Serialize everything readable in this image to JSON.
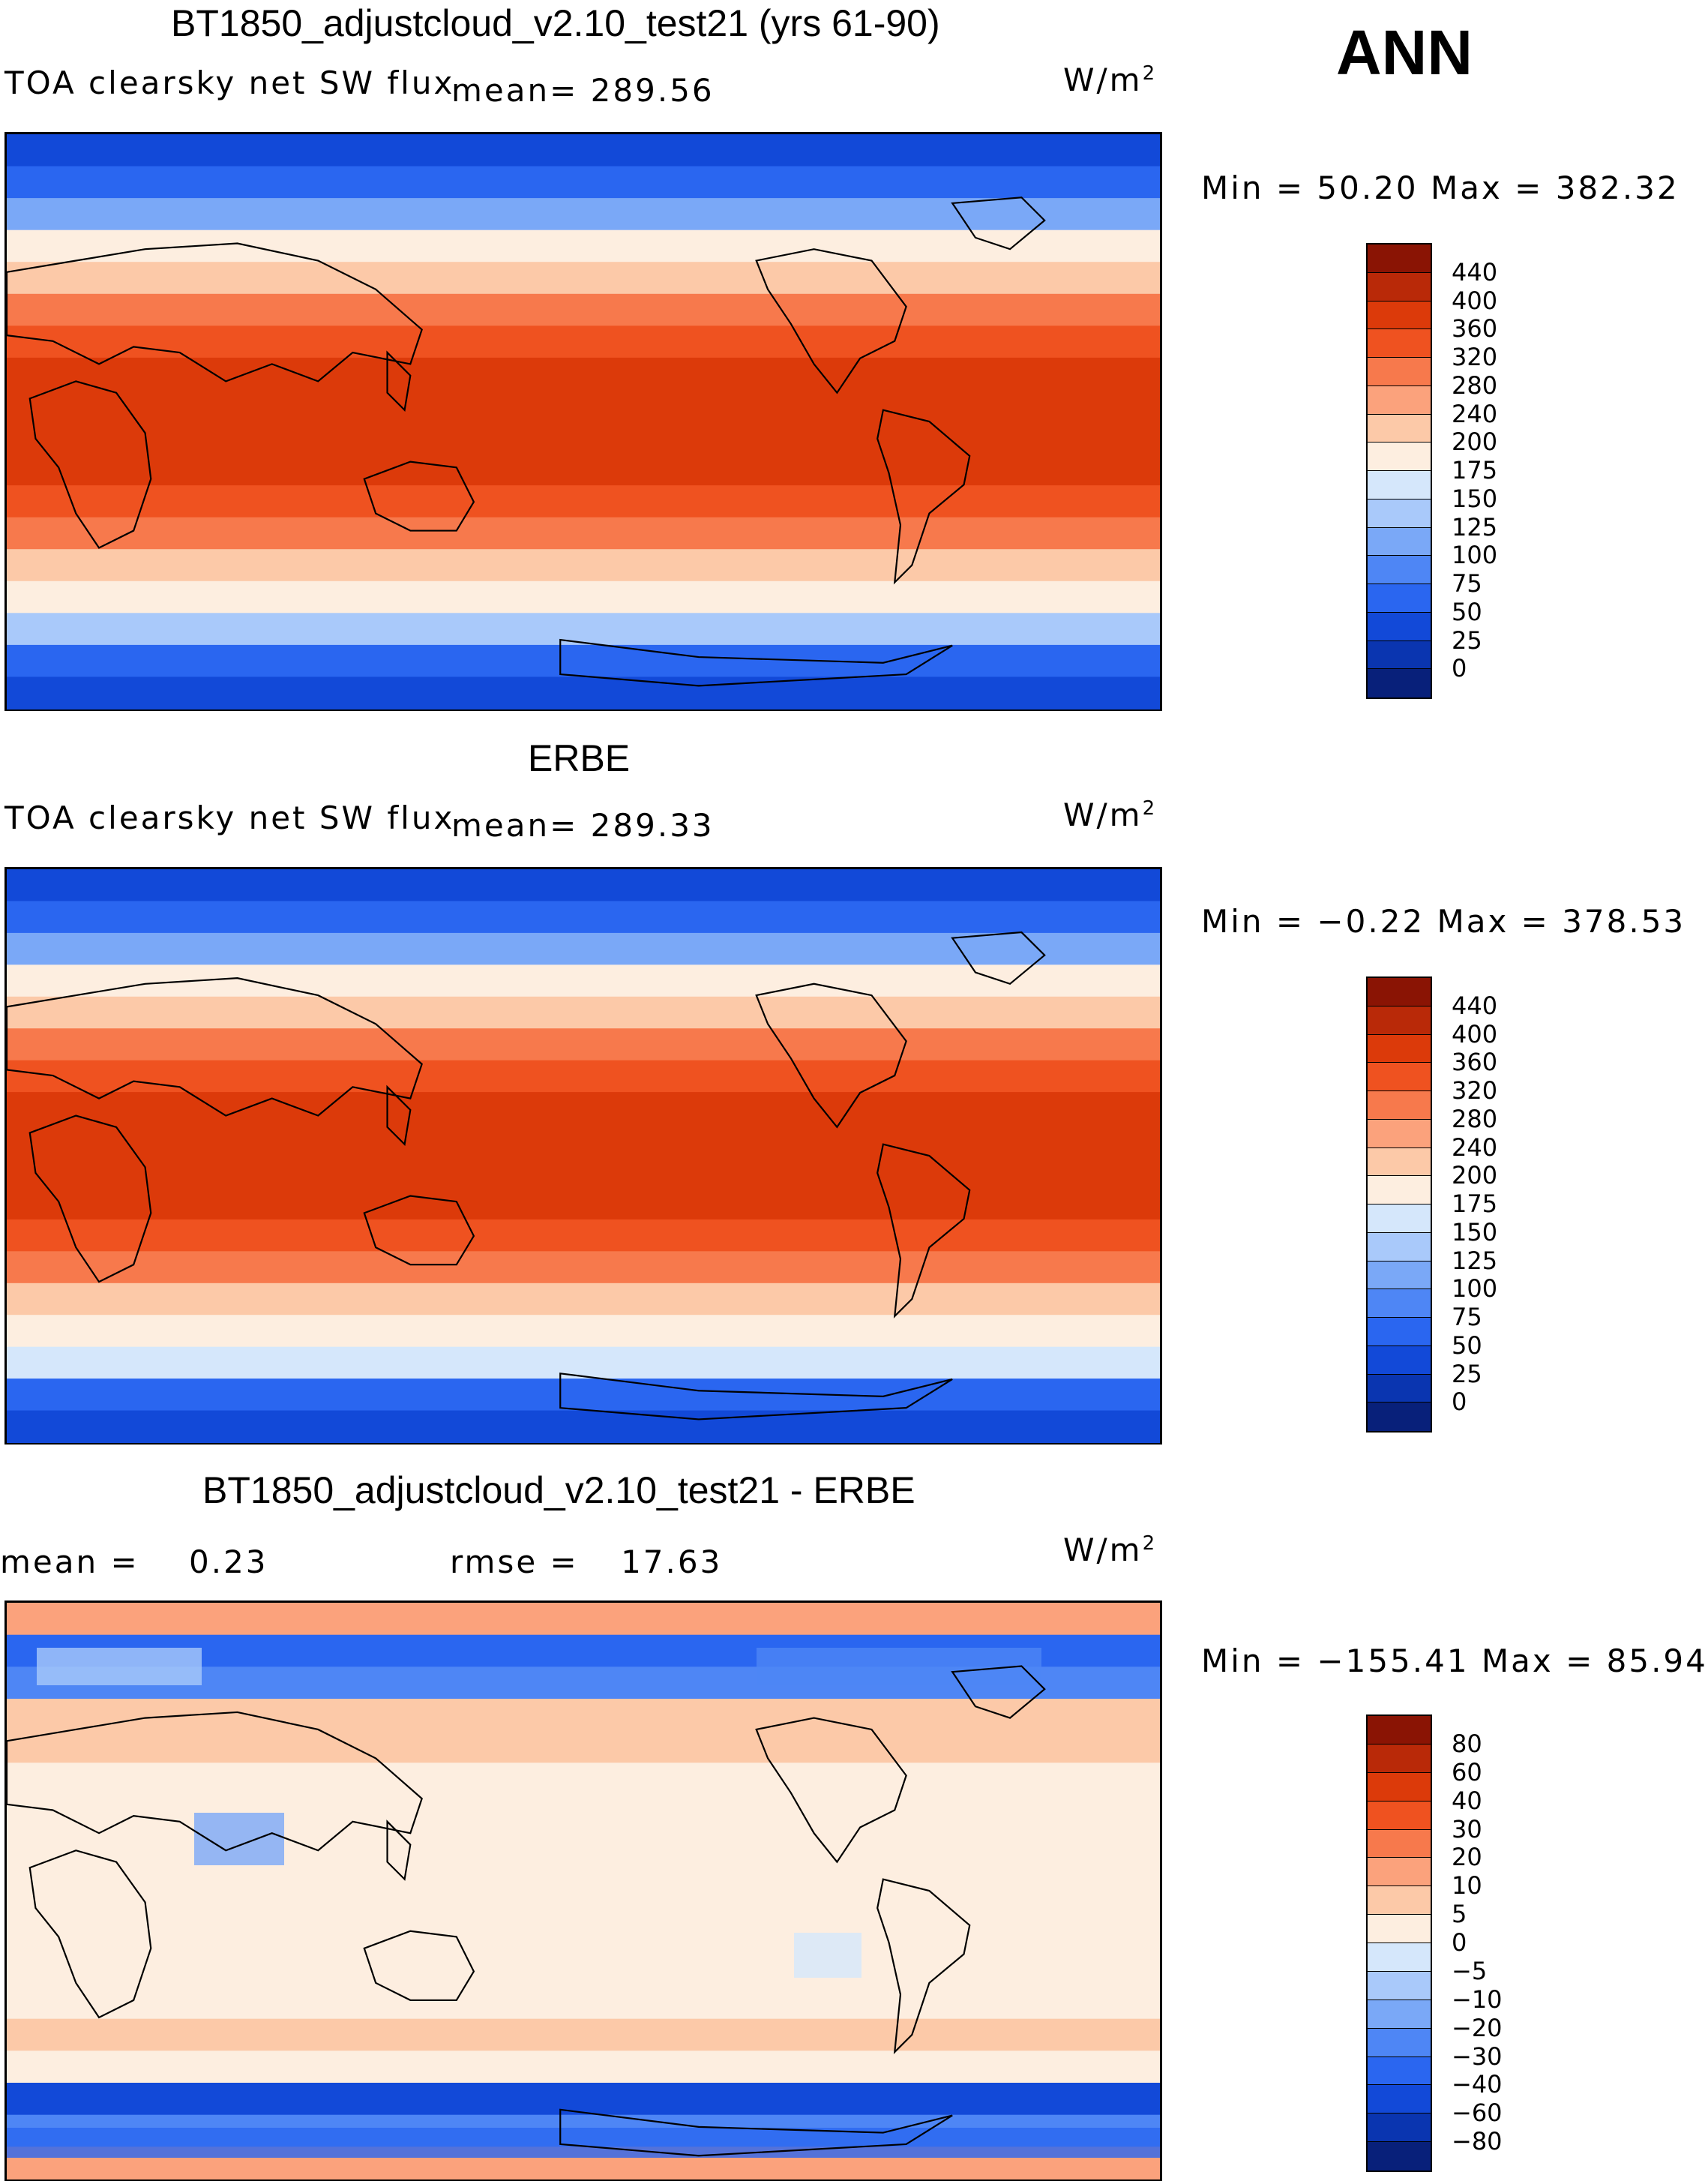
{
  "season": "ANN",
  "colors": {
    "abs_scale": [
      "#08207a",
      "#0a35b0",
      "#1249d8",
      "#2a66f0",
      "#4e86f5",
      "#7aa8f7",
      "#a9c9fa",
      "#d5e7fb",
      "#fdeee0",
      "#fcc9a8",
      "#fba27c",
      "#f7794c",
      "#ef5220",
      "#dc3a0a",
      "#b92908",
      "#8a1404"
    ],
    "diff_scale": [
      "#08207a",
      "#0a35b0",
      "#1249d8",
      "#2a66f0",
      "#4e86f5",
      "#7aa8f7",
      "#a9c9fa",
      "#d5e7fb",
      "#fdeee0",
      "#fcc9a8",
      "#fba27c",
      "#f7794c",
      "#ef5220",
      "#dc3a0a",
      "#b92908",
      "#8a1404"
    ]
  },
  "panels": [
    {
      "title": "BT1850_adjustcloud_v2.10_test21 (yrs 61-90)",
      "variable": "TOA clearsky net SW flux",
      "mean_label": "mean=",
      "mean_value": "289.56",
      "units": "W/m",
      "units_sup": "2",
      "minmax": "Min =   50.20 Max = 382.32"
    },
    {
      "title": "ERBE",
      "variable": "TOA clearsky net SW flux",
      "mean_label": "mean=",
      "mean_value": "289.33",
      "units": "W/m",
      "units_sup": "2",
      "minmax": "Min =  −0.22 Max = 378.53"
    },
    {
      "title": "BT1850_adjustcloud_v2.10_test21 - ERBE",
      "mean_label": "mean =",
      "mean_value": "0.23",
      "rmse_label": "rmse =",
      "rmse_value": "17.63",
      "units": "W/m",
      "units_sup": "2",
      "minmax": "Min = −155.41 Max =  85.94"
    }
  ],
  "chart_data": [
    {
      "type": "heatmap",
      "title": "BT1850_adjustcloud_v2.10_test21 (yrs 61-90)",
      "subtitle": "TOA clearsky net SW flux",
      "mean": 289.56,
      "min": 50.2,
      "max": 382.32,
      "units": "W/m2",
      "colorbar_levels": [
        "440",
        "400",
        "360",
        "320",
        "280",
        "240",
        "200",
        "175",
        "150",
        "125",
        "100",
        "75",
        "50",
        "25",
        "0"
      ],
      "zonal_profile": [
        40,
        60,
        120,
        185,
        235,
        290,
        330,
        370,
        385,
        385,
        370,
        330,
        290,
        235,
        185,
        130,
        70,
        45
      ]
    },
    {
      "type": "heatmap",
      "title": "ERBE",
      "subtitle": "TOA clearsky net SW flux",
      "mean": 289.33,
      "min": -0.22,
      "max": 378.53,
      "units": "W/m2",
      "colorbar_levels": [
        "440",
        "400",
        "360",
        "320",
        "280",
        "240",
        "200",
        "175",
        "150",
        "125",
        "100",
        "75",
        "50",
        "25",
        "0"
      ],
      "zonal_profile": [
        30,
        55,
        110,
        180,
        230,
        285,
        330,
        365,
        380,
        380,
        365,
        330,
        285,
        230,
        190,
        160,
        60,
        30
      ]
    },
    {
      "type": "heatmap",
      "title": "BT1850_adjustcloud_v2.10_test21 - ERBE",
      "mean": 0.23,
      "rmse": 17.63,
      "min": -155.41,
      "max": 85.94,
      "units": "W/m2",
      "colorbar_levels": [
        "80",
        "60",
        "40",
        "30",
        "20",
        "10",
        "5",
        "0",
        "−5",
        "−10",
        "−20",
        "−30",
        "−40",
        "−60",
        "−80"
      ],
      "zonal_profile": [
        10,
        -40,
        -25,
        8,
        6,
        4,
        3,
        3,
        3,
        3,
        3,
        3,
        4,
        6,
        4,
        -45,
        -30,
        10
      ]
    }
  ]
}
